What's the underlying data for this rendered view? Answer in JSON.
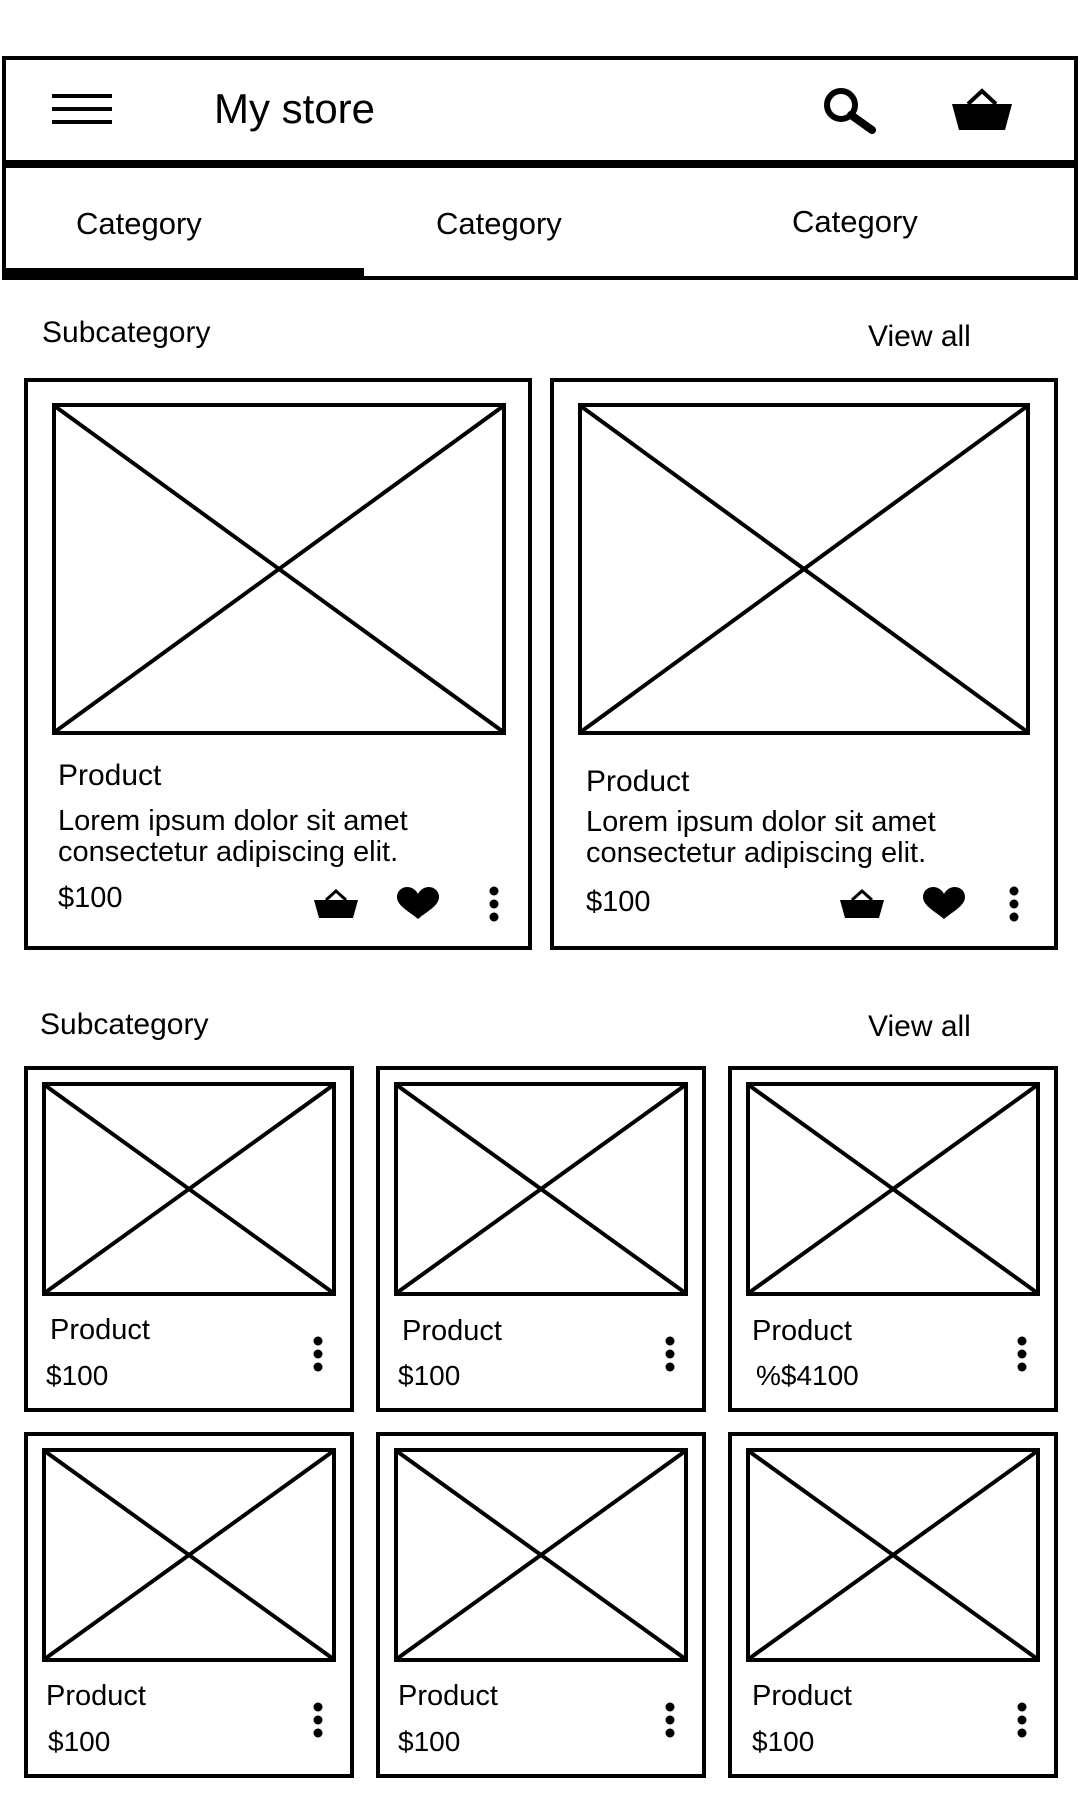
{
  "header": {
    "title": "My store",
    "icons": {
      "menu": "hamburger-menu-icon",
      "search": "search-icon",
      "cart": "basket-icon"
    }
  },
  "tabs": [
    {
      "label": "Category",
      "selected": true
    },
    {
      "label": "Category",
      "selected": false
    },
    {
      "label": "Category",
      "selected": false
    }
  ],
  "section1": {
    "title": "Subcategory",
    "view_all": "View all",
    "products": [
      {
        "title": "Product",
        "description_line1": "Lorem ipsum dolor sit amet",
        "description_line2": "consectetur adipiscing elit.",
        "price": "$100"
      },
      {
        "title": "Product",
        "description_line1": "Lorem ipsum dolor sit amet",
        "description_line2": "consectetur adipiscing elit.",
        "price": "$100"
      }
    ]
  },
  "section2": {
    "title": "Subcategory",
    "view_all": "View all",
    "products": [
      {
        "title": "Product",
        "price": "$100"
      },
      {
        "title": "Product",
        "price": "$100"
      },
      {
        "title": "Product",
        "price": "%$4100"
      },
      {
        "title": "Product",
        "price": "$100"
      },
      {
        "title": "Product",
        "price": "$100"
      },
      {
        "title": "Product",
        "price": "$100"
      }
    ]
  }
}
